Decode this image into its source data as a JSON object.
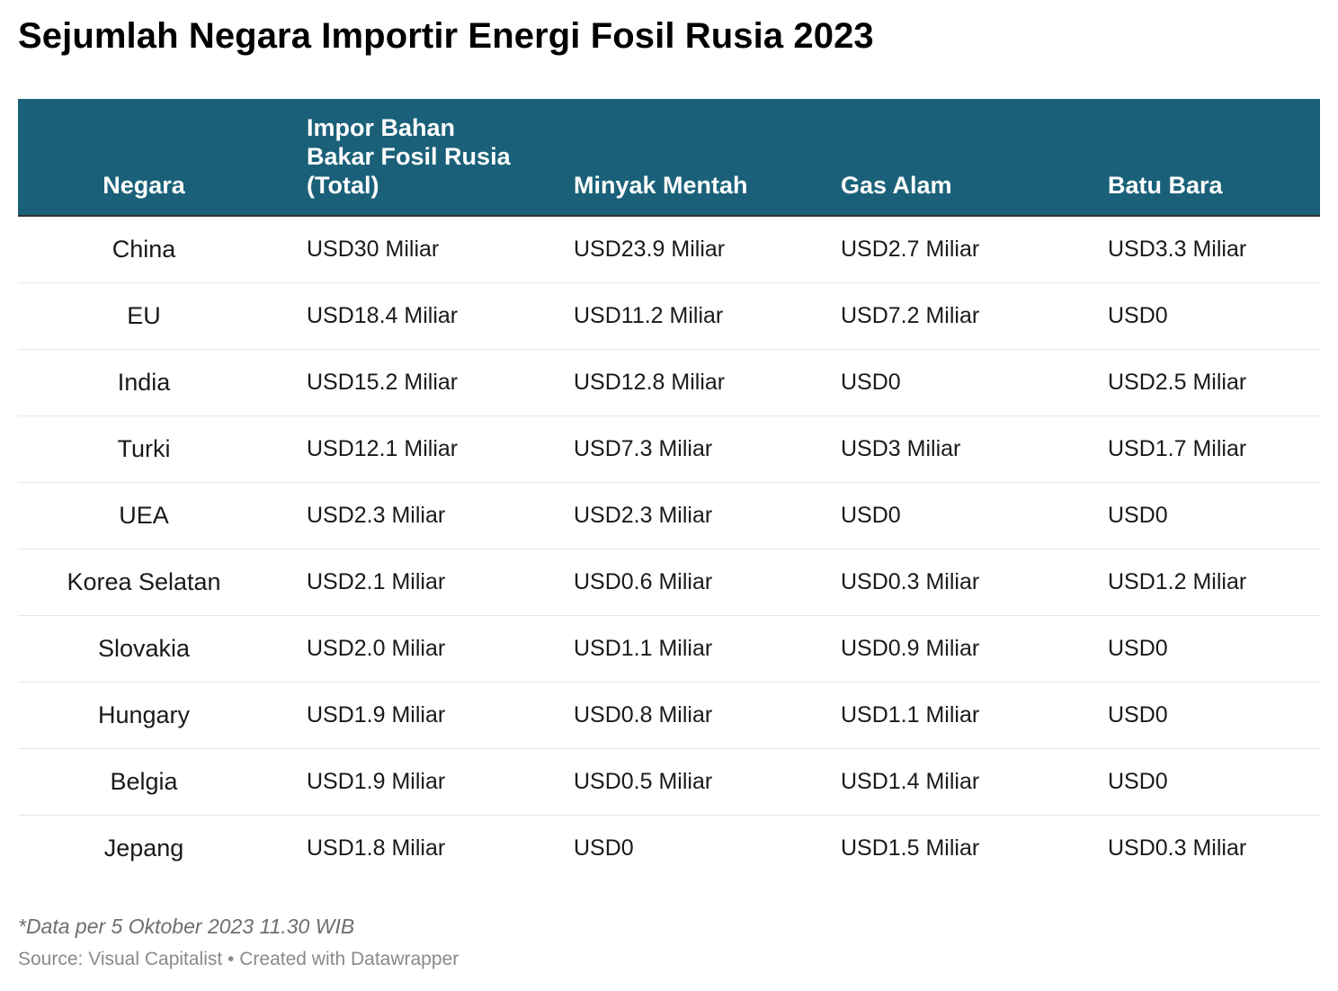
{
  "header": {
    "title": "Sejumlah Negara Importir Energi Fosil Rusia 2023"
  },
  "chart_data": {
    "type": "table",
    "title": "Sejumlah Negara Importir Energi Fosil Rusia 2023",
    "columns": [
      {
        "lines": [
          "Negara"
        ]
      },
      {
        "lines": [
          "Impor Bahan",
          "Bakar Fosil Rusia",
          "(Total)"
        ]
      },
      {
        "lines": [
          "Minyak Mentah"
        ]
      },
      {
        "lines": [
          "Gas Alam"
        ]
      },
      {
        "lines": [
          "Batu Bara"
        ]
      }
    ],
    "rows": [
      [
        "China",
        "USD30 Miliar",
        "USD23.9 Miliar",
        "USD2.7 Miliar",
        "USD3.3 Miliar"
      ],
      [
        "EU",
        "USD18.4 Miliar",
        "USD11.2 Miliar",
        "USD7.2 Miliar",
        "USD0"
      ],
      [
        "India",
        "USD15.2 Miliar",
        "USD12.8 Miliar",
        "USD0",
        "USD2.5 Miliar"
      ],
      [
        "Turki",
        "USD12.1 Miliar",
        "USD7.3 Miliar",
        "USD3 Miliar",
        "USD1.7 Miliar"
      ],
      [
        "UEA",
        "USD2.3 Miliar",
        "USD2.3 Miliar",
        "USD0",
        "USD0"
      ],
      [
        "Korea Selatan",
        "USD2.1 Miliar",
        "USD0.6 Miliar",
        "USD0.3 Miliar",
        "USD1.2 Miliar"
      ],
      [
        "Slovakia",
        "USD2.0 Miliar",
        "USD1.1 Miliar",
        "USD0.9 Miliar",
        "USD0"
      ],
      [
        "Hungary",
        "USD1.9 Miliar",
        "USD0.8 Miliar",
        "USD1.1 Miliar",
        "USD0"
      ],
      [
        "Belgia",
        "USD1.9 Miliar",
        "USD0.5 Miliar",
        "USD1.4 Miliar",
        "USD0"
      ],
      [
        "Jepang",
        "USD1.8 Miliar",
        "USD0",
        "USD1.5 Miliar",
        "USD0.3 Miliar"
      ]
    ]
  },
  "footer": {
    "note": "*Data per 5 Oktober 2023 11.30 WIB",
    "source": "Source: Visual Capitalist • Created with Datawrapper"
  },
  "colors": {
    "header_background": "#1a6079",
    "header_text": "#ffffff",
    "row_divider": "#e6e6e6"
  }
}
